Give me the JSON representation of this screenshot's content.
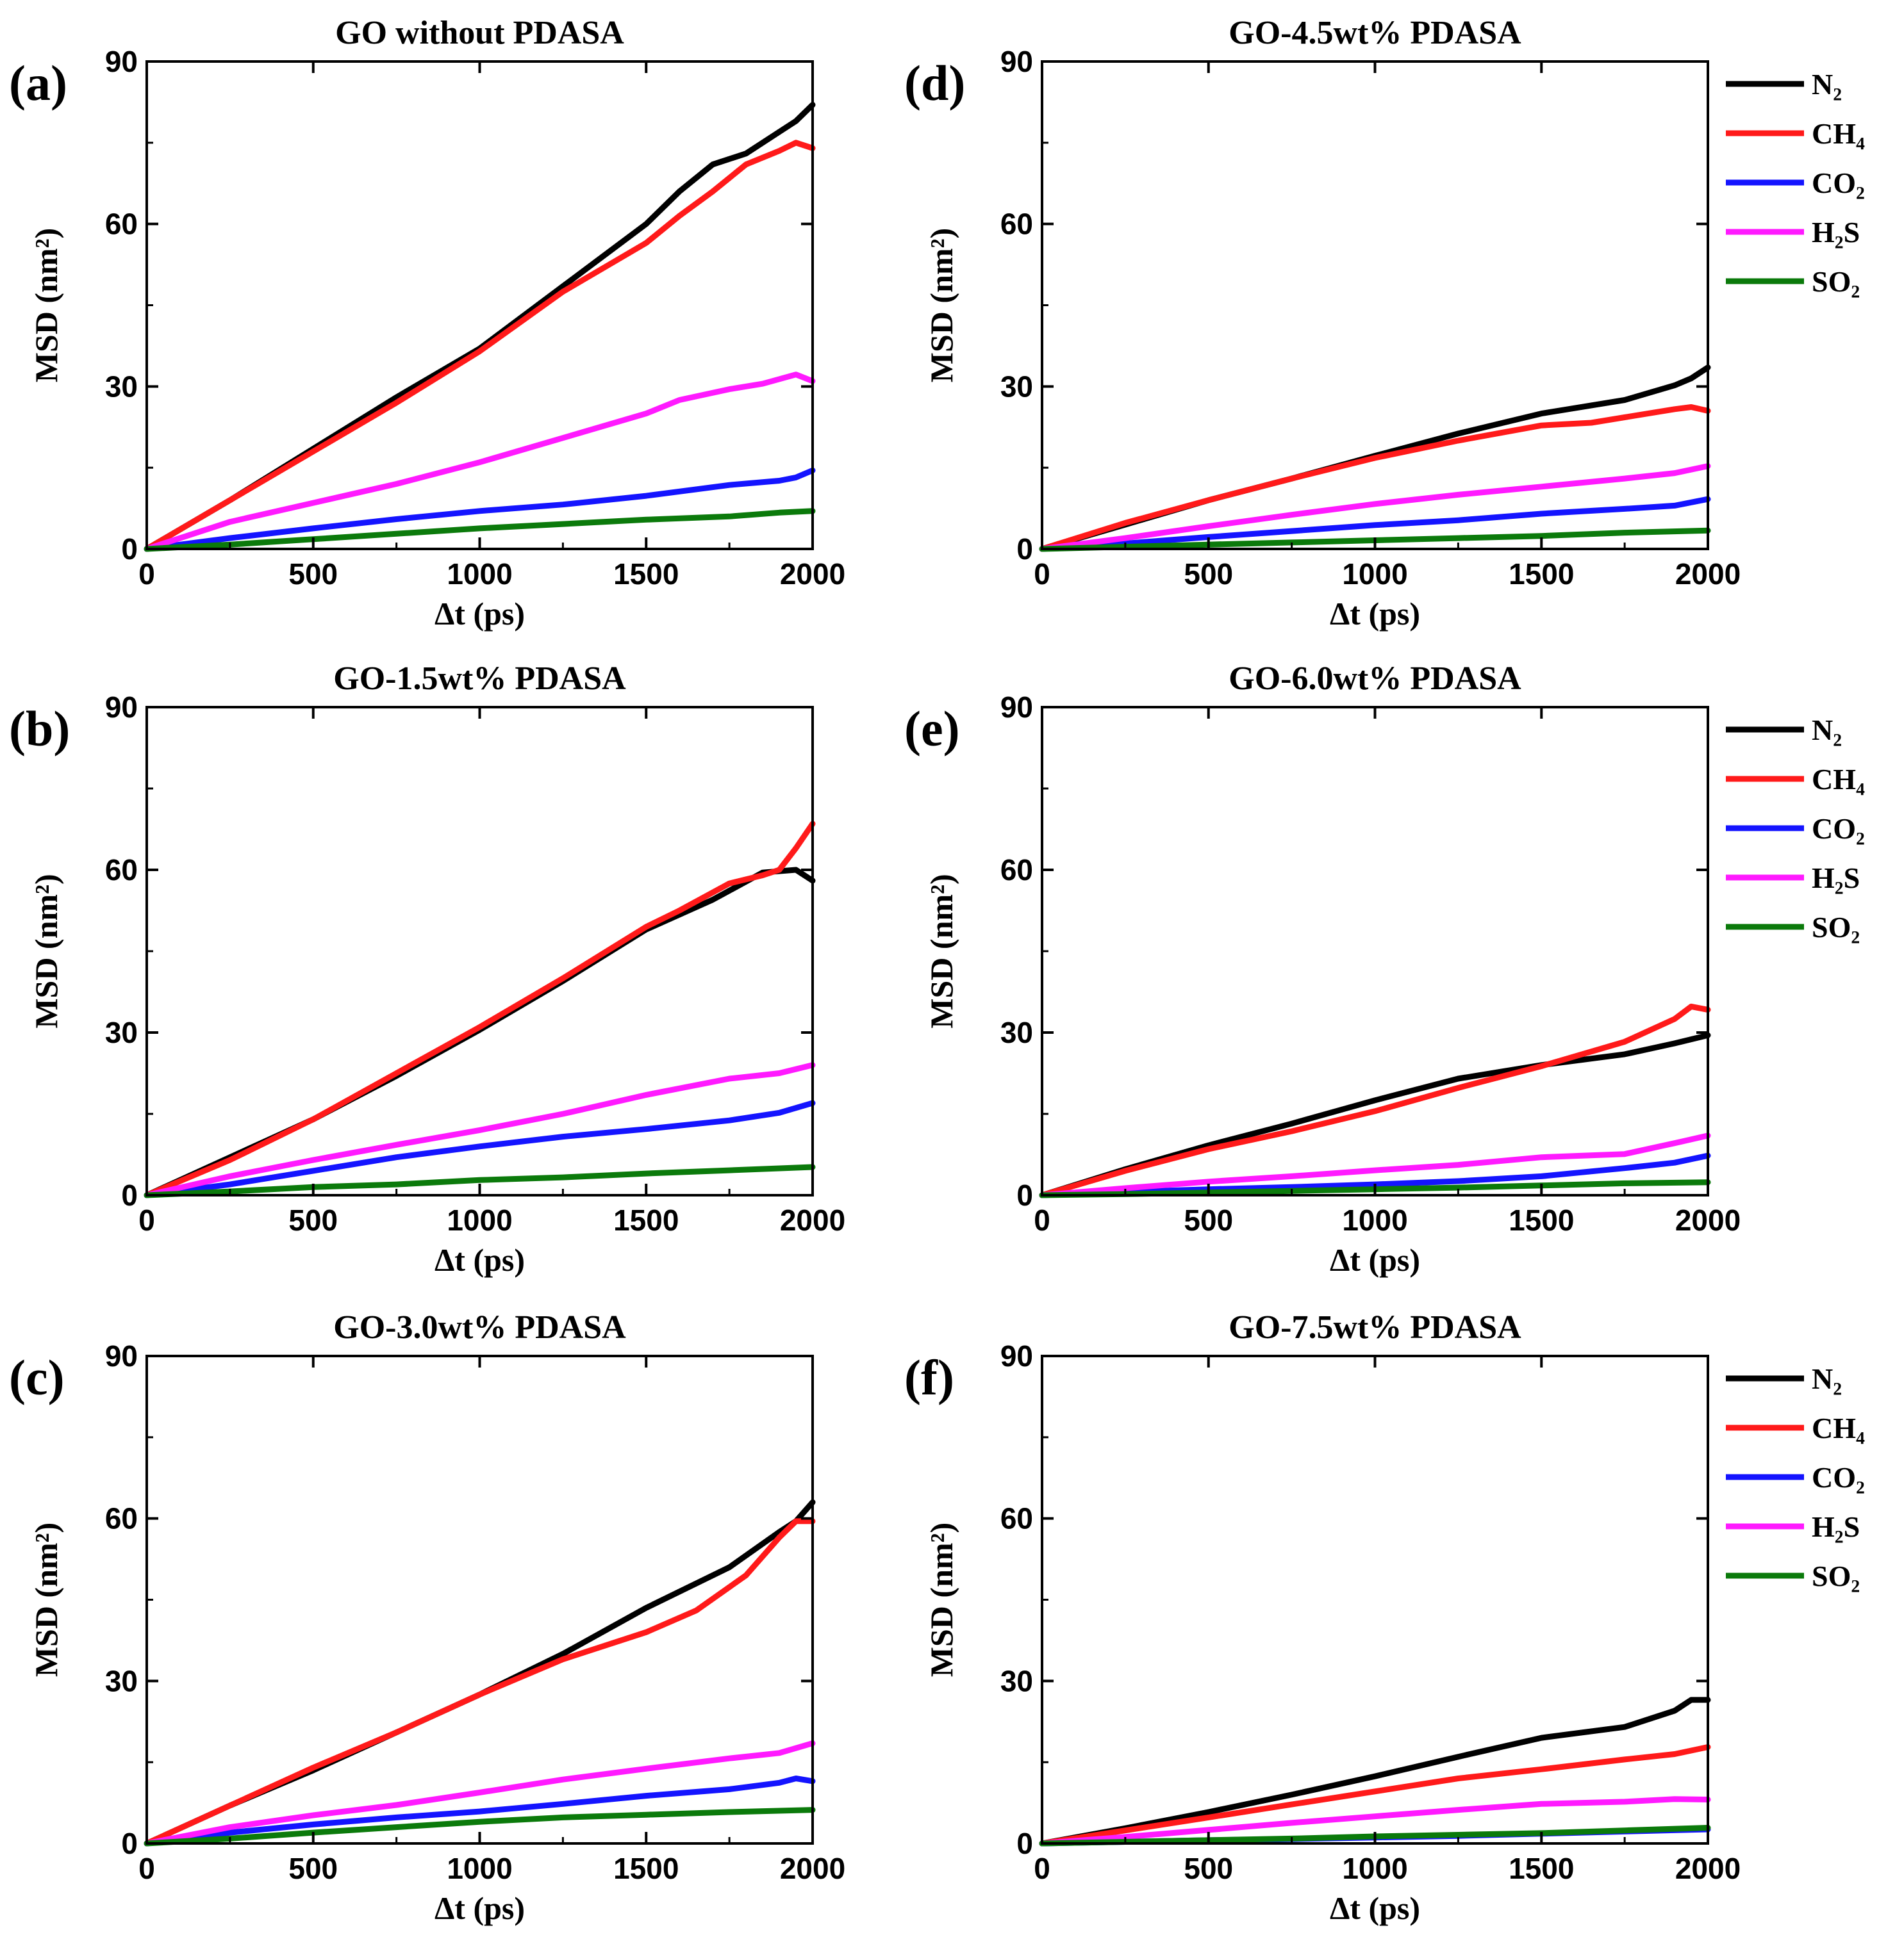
{
  "colors": {
    "N2": "#000000",
    "CH4": "#ff1a1a",
    "CO2": "#1414ff",
    "H2S": "#ff1aff",
    "SO2": "#0b7a0b"
  },
  "chart_data": [
    {
      "type": "line",
      "panel": "(a)",
      "title": "GO without PDASA",
      "xlabel": "Δt (ps)",
      "ylabel": "MSD (nm²)",
      "xlim": [
        0,
        2000
      ],
      "ylim": [
        0,
        90
      ],
      "xticks": [
        0,
        500,
        1000,
        1500,
        2000
      ],
      "yticks": [
        0,
        30,
        60,
        90
      ],
      "legend": false,
      "series": [
        {
          "name": "N₂",
          "color_key": "N2",
          "x": [
            0,
            250,
            500,
            750,
            1000,
            1250,
            1500,
            1600,
            1700,
            1800,
            1900,
            1950,
            2000
          ],
          "y": [
            0,
            9,
            18.5,
            28,
            37,
            48.5,
            60,
            66,
            71,
            73,
            77,
            79,
            82
          ]
        },
        {
          "name": "CH₄",
          "color_key": "CH4",
          "x": [
            0,
            250,
            500,
            750,
            1000,
            1250,
            1500,
            1600,
            1700,
            1800,
            1900,
            1950,
            2000
          ],
          "y": [
            0,
            9,
            18,
            27,
            36.5,
            47.5,
            56.5,
            61.5,
            66,
            71,
            73.5,
            75,
            74
          ]
        },
        {
          "name": "CO₂",
          "color_key": "CO2",
          "x": [
            0,
            250,
            500,
            750,
            1000,
            1250,
            1500,
            1750,
            1900,
            1950,
            2000
          ],
          "y": [
            0,
            2,
            3.8,
            5.5,
            7,
            8.2,
            9.8,
            11.8,
            12.6,
            13.2,
            14.5
          ]
        },
        {
          "name": "H₂S",
          "color_key": "H2S",
          "x": [
            0,
            250,
            500,
            750,
            1000,
            1250,
            1500,
            1600,
            1750,
            1850,
            1950,
            2000
          ],
          "y": [
            0,
            5,
            8.5,
            12,
            16,
            20.5,
            25,
            27.5,
            29.5,
            30.5,
            32.2,
            31
          ]
        },
        {
          "name": "SO₂",
          "color_key": "SO2",
          "x": [
            0,
            250,
            500,
            750,
            1000,
            1250,
            1500,
            1750,
            1900,
            2000
          ],
          "y": [
            0,
            0.8,
            1.8,
            2.8,
            3.8,
            4.6,
            5.4,
            6,
            6.7,
            7
          ]
        }
      ]
    },
    {
      "type": "line",
      "panel": "(b)",
      "title": "GO-1.5wt% PDASA",
      "xlabel": "Δt (ps)",
      "ylabel": "MSD (nm²)",
      "xlim": [
        0,
        2000
      ],
      "ylim": [
        0,
        90
      ],
      "xticks": [
        0,
        500,
        1000,
        1500,
        2000
      ],
      "yticks": [
        0,
        30,
        60,
        90
      ],
      "legend": false,
      "series": [
        {
          "name": "N₂",
          "color_key": "N2",
          "x": [
            0,
            250,
            500,
            750,
            1000,
            1250,
            1500,
            1700,
            1850,
            1950,
            2000
          ],
          "y": [
            0,
            7,
            14,
            22,
            30.5,
            39.5,
            49,
            54.5,
            59.5,
            60,
            58
          ]
        },
        {
          "name": "CH₄",
          "color_key": "CH4",
          "x": [
            0,
            250,
            500,
            750,
            1000,
            1250,
            1500,
            1600,
            1750,
            1850,
            1900,
            1950,
            2000
          ],
          "y": [
            0,
            6.5,
            14,
            22.5,
            31,
            40,
            49.5,
            52.5,
            57.5,
            59,
            60,
            64,
            68.5
          ]
        },
        {
          "name": "CO₂",
          "color_key": "CO2",
          "x": [
            0,
            250,
            500,
            750,
            1000,
            1250,
            1500,
            1750,
            1900,
            2000
          ],
          "y": [
            0,
            2,
            4.5,
            7,
            9,
            10.8,
            12.2,
            13.8,
            15.2,
            17
          ]
        },
        {
          "name": "H₂S",
          "color_key": "H2S",
          "x": [
            0,
            250,
            500,
            750,
            1000,
            1250,
            1500,
            1750,
            1900,
            2000
          ],
          "y": [
            0,
            3.5,
            6.5,
            9.3,
            12,
            15,
            18.5,
            21.5,
            22.5,
            24
          ]
        },
        {
          "name": "SO₂",
          "color_key": "SO2",
          "x": [
            0,
            250,
            500,
            750,
            1000,
            1250,
            1500,
            1750,
            2000
          ],
          "y": [
            0,
            0.7,
            1.5,
            2,
            2.8,
            3.3,
            4,
            4.6,
            5.2
          ]
        }
      ]
    },
    {
      "type": "line",
      "panel": "(c)",
      "title": "GO-3.0wt% PDASA",
      "xlabel": "Δt (ps)",
      "ylabel": "MSD (nm²)",
      "xlim": [
        0,
        2000
      ],
      "ylim": [
        0,
        90
      ],
      "xticks": [
        0,
        500,
        1000,
        1500,
        2000
      ],
      "yticks": [
        0,
        30,
        60,
        90
      ],
      "legend": false,
      "series": [
        {
          "name": "N₂",
          "color_key": "N2",
          "x": [
            0,
            250,
            500,
            750,
            1000,
            1250,
            1500,
            1750,
            1900,
            1950,
            2000
          ],
          "y": [
            0,
            7,
            13.5,
            20.5,
            27.5,
            35,
            43.5,
            51,
            57.5,
            59.5,
            63
          ]
        },
        {
          "name": "CH₄",
          "color_key": "CH4",
          "x": [
            0,
            250,
            500,
            750,
            1000,
            1250,
            1500,
            1650,
            1800,
            1900,
            1950,
            2000
          ],
          "y": [
            0,
            7,
            14,
            20.5,
            27.5,
            34,
            39,
            43,
            49.5,
            56.5,
            59.5,
            59.5
          ]
        },
        {
          "name": "CO₂",
          "color_key": "CO2",
          "x": [
            0,
            250,
            500,
            750,
            1000,
            1250,
            1500,
            1750,
            1900,
            1950,
            2000
          ],
          "y": [
            0,
            2,
            3.5,
            4.8,
            5.9,
            7.3,
            8.8,
            10,
            11.2,
            12,
            11.5
          ]
        },
        {
          "name": "H₂S",
          "color_key": "H2S",
          "x": [
            0,
            250,
            500,
            750,
            1000,
            1250,
            1500,
            1750,
            1900,
            2000
          ],
          "y": [
            0,
            3,
            5.2,
            7.1,
            9.4,
            11.8,
            13.8,
            15.7,
            16.7,
            18.5
          ]
        },
        {
          "name": "SO₂",
          "color_key": "SO2",
          "x": [
            0,
            250,
            500,
            750,
            1000,
            1250,
            1500,
            1750,
            2000
          ],
          "y": [
            0,
            0.9,
            2,
            3,
            4,
            4.8,
            5.3,
            5.8,
            6.2
          ]
        }
      ]
    },
    {
      "type": "line",
      "panel": "(d)",
      "title": "GO-4.5wt% PDASA",
      "xlabel": "Δt (ps)",
      "ylabel": "MSD (nm²)",
      "xlim": [
        0,
        2000
      ],
      "ylim": [
        0,
        90
      ],
      "xticks": [
        0,
        500,
        1000,
        1500,
        2000
      ],
      "yticks": [
        0,
        30,
        60,
        90
      ],
      "legend": true,
      "series": [
        {
          "name": "N₂",
          "color_key": "N2",
          "x": [
            0,
            250,
            500,
            750,
            1000,
            1250,
            1500,
            1750,
            1900,
            1950,
            2000
          ],
          "y": [
            0,
            4.5,
            9,
            13,
            17.2,
            21.3,
            25,
            27.5,
            30.2,
            31.5,
            33.5
          ]
        },
        {
          "name": "CH₄",
          "color_key": "CH4",
          "x": [
            0,
            250,
            500,
            750,
            1000,
            1250,
            1500,
            1650,
            1750,
            1900,
            1950,
            2000
          ],
          "y": [
            0,
            4.8,
            9,
            13,
            16.8,
            20,
            22.8,
            23.3,
            24.3,
            25.8,
            26.2,
            25.5
          ]
        },
        {
          "name": "CO₂",
          "color_key": "CO2",
          "x": [
            0,
            250,
            500,
            750,
            1000,
            1250,
            1500,
            1750,
            1900,
            2000
          ],
          "y": [
            0,
            1,
            2.2,
            3.3,
            4.4,
            5.3,
            6.5,
            7.4,
            8,
            9.2
          ]
        },
        {
          "name": "H₂S",
          "color_key": "H2S",
          "x": [
            0,
            250,
            500,
            750,
            1000,
            1250,
            1500,
            1750,
            1900,
            2000
          ],
          "y": [
            0,
            2,
            4.2,
            6.3,
            8.3,
            10,
            11.5,
            13,
            14,
            15.3
          ]
        },
        {
          "name": "SO₂",
          "color_key": "SO2",
          "x": [
            0,
            250,
            500,
            750,
            1000,
            1250,
            1500,
            1750,
            2000
          ],
          "y": [
            0,
            0.4,
            0.8,
            1.2,
            1.6,
            2,
            2.4,
            3,
            3.4
          ]
        }
      ]
    },
    {
      "type": "line",
      "panel": "(e)",
      "title": "GO-6.0wt% PDASA",
      "xlabel": "Δt (ps)",
      "ylabel": "MSD (nm²)",
      "xlim": [
        0,
        2000
      ],
      "ylim": [
        0,
        90
      ],
      "xticks": [
        0,
        500,
        1000,
        1500,
        2000
      ],
      "yticks": [
        0,
        30,
        60,
        90
      ],
      "legend": true,
      "series": [
        {
          "name": "N₂",
          "color_key": "N2",
          "x": [
            0,
            250,
            500,
            750,
            1000,
            1250,
            1500,
            1750,
            1900,
            2000
          ],
          "y": [
            0,
            4.8,
            9.2,
            13.2,
            17.5,
            21.5,
            24,
            26,
            28,
            29.5
          ]
        },
        {
          "name": "CH₄",
          "color_key": "CH4",
          "x": [
            0,
            250,
            500,
            750,
            1000,
            1250,
            1500,
            1750,
            1900,
            1950,
            2000
          ],
          "y": [
            0,
            4.5,
            8.5,
            11.8,
            15.5,
            19.8,
            23.8,
            28.3,
            32.5,
            34.8,
            34.2
          ]
        },
        {
          "name": "CO₂",
          "color_key": "CO2",
          "x": [
            0,
            250,
            500,
            750,
            1000,
            1250,
            1500,
            1750,
            1900,
            2000
          ],
          "y": [
            0,
            0.6,
            1.1,
            1.5,
            2,
            2.6,
            3.5,
            5,
            6,
            7.3
          ]
        },
        {
          "name": "H₂S",
          "color_key": "H2S",
          "x": [
            0,
            250,
            500,
            750,
            1000,
            1250,
            1500,
            1750,
            1900,
            2000
          ],
          "y": [
            0,
            1.3,
            2.5,
            3.5,
            4.6,
            5.6,
            7,
            7.6,
            9.6,
            11
          ]
        },
        {
          "name": "SO₂",
          "color_key": "SO2",
          "x": [
            0,
            250,
            500,
            750,
            1000,
            1250,
            1500,
            1750,
            2000
          ],
          "y": [
            0,
            0.2,
            0.5,
            0.8,
            1.1,
            1.4,
            1.8,
            2.2,
            2.4
          ]
        }
      ]
    },
    {
      "type": "line",
      "panel": "(f)",
      "title": "GO-7.5wt% PDASA",
      "xlabel": "Δt (ps)",
      "ylabel": "MSD (nm²)",
      "xlim": [
        0,
        2000
      ],
      "ylim": [
        0,
        90
      ],
      "xticks": [
        0,
        500,
        1000,
        1500,
        2000
      ],
      "yticks": [
        0,
        30,
        60,
        90
      ],
      "legend": true,
      "series": [
        {
          "name": "N₂",
          "color_key": "N2",
          "x": [
            0,
            250,
            500,
            750,
            1000,
            1250,
            1500,
            1750,
            1900,
            1950,
            2000
          ],
          "y": [
            0,
            2.8,
            5.8,
            9,
            12.4,
            16,
            19.5,
            21.5,
            24.5,
            26.5,
            26.5
          ]
        },
        {
          "name": "CH₄",
          "color_key": "CH4",
          "x": [
            0,
            250,
            500,
            750,
            1000,
            1250,
            1500,
            1750,
            1900,
            2000
          ],
          "y": [
            0,
            2.4,
            4.8,
            7.2,
            9.6,
            12,
            13.7,
            15.5,
            16.5,
            17.8
          ]
        },
        {
          "name": "CO₂",
          "color_key": "CO2",
          "x": [
            0,
            250,
            500,
            750,
            1000,
            1250,
            1500,
            1750,
            2000
          ],
          "y": [
            0,
            0.3,
            0.6,
            0.8,
            1.1,
            1.4,
            1.8,
            2.2,
            2.6
          ]
        },
        {
          "name": "H₂S",
          "color_key": "H2S",
          "x": [
            0,
            250,
            500,
            750,
            1000,
            1250,
            1500,
            1750,
            1900,
            2000
          ],
          "y": [
            0,
            1.2,
            2.5,
            3.8,
            5,
            6.2,
            7.3,
            7.7,
            8.2,
            8.1
          ]
        },
        {
          "name": "SO₂",
          "color_key": "SO2",
          "x": [
            0,
            250,
            500,
            750,
            1000,
            1250,
            1500,
            1750,
            2000
          ],
          "y": [
            0,
            0.3,
            0.6,
            0.9,
            1.3,
            1.6,
            1.9,
            2.4,
            2.9
          ]
        }
      ]
    }
  ]
}
